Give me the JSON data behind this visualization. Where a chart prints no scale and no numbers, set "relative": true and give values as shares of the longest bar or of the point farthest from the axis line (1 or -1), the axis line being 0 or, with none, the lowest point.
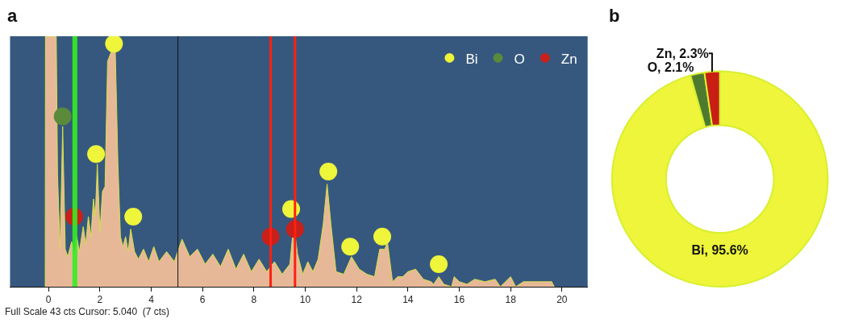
{
  "chart_data": [
    {
      "type": "area",
      "title": "a",
      "relative": true,
      "xlim": [
        -1.5,
        21
      ],
      "xticks": [
        0,
        2,
        4,
        6,
        8,
        10,
        12,
        14,
        16,
        18,
        20
      ],
      "grid": false,
      "legend": "top right",
      "annotations": [
        "Full Scale 43 cts Cursor: 5.040  (7 cts)"
      ],
      "ref_lines": [
        {
          "axis": "x",
          "value": 5.04,
          "color": "#111111"
        },
        {
          "axis": "x",
          "value": 8.65,
          "color": "#ff2010"
        },
        {
          "axis": "x",
          "value": 9.6,
          "color": "#ff2010"
        }
      ],
      "bands": [
        {
          "axis": "x",
          "from": 0.93,
          "to": 1.12,
          "color": "#33ee22"
        }
      ],
      "series": [
        {
          "type": "area",
          "color": "#e7b898",
          "x": [
            -0.13,
            -0.12,
            0.3,
            0.35,
            0.45,
            0.55,
            0.65,
            0.75,
            0.9,
            1.0,
            1.1,
            1.2,
            1.35,
            1.45,
            1.55,
            1.65,
            1.75,
            1.82,
            1.9,
            2.0,
            2.1,
            2.2,
            2.3,
            2.45,
            2.6,
            2.7,
            2.8,
            2.9,
            3.0,
            3.1,
            3.2,
            3.35,
            3.5,
            3.7,
            3.9,
            4.1,
            4.3,
            4.6,
            4.9,
            5.2,
            5.5,
            5.8,
            6.1,
            6.4,
            6.7,
            7.0,
            7.3,
            7.6,
            7.9,
            8.2,
            8.5,
            8.8,
            9.1,
            9.4,
            9.55,
            9.7,
            9.9,
            10.1,
            10.3,
            10.5,
            10.7,
            10.85,
            11.0,
            11.2,
            11.5,
            11.8,
            12.1,
            12.4,
            12.7,
            12.9,
            13.1,
            13.2,
            13.4,
            13.6,
            13.8,
            14.0,
            14.3,
            14.6,
            14.9,
            15.0,
            15.2,
            15.4,
            15.7,
            15.8,
            16.0,
            16.3,
            16.6,
            17.0,
            17.4,
            17.6,
            18.0,
            18.2,
            18.5,
            19.0,
            19.3,
            19.6,
            19.7
          ],
          "values": [
            0,
            1,
            1,
            0.45,
            0.15,
            0.64,
            0.15,
            0.12,
            0.18,
            0.12,
            0.2,
            0.14,
            0.24,
            0.17,
            0.28,
            0.2,
            0.35,
            0.28,
            0.49,
            0.22,
            0.38,
            0.4,
            0.9,
            0.94,
            0.94,
            0.5,
            0.2,
            0.16,
            0.2,
            0.14,
            0.23,
            0.14,
            0.11,
            0.15,
            0.1,
            0.16,
            0.1,
            0.14,
            0.1,
            0.19,
            0.12,
            0.15,
            0.09,
            0.13,
            0.08,
            0.15,
            0.07,
            0.13,
            0.06,
            0.11,
            0.06,
            0.1,
            0.05,
            0.09,
            0.25,
            0.13,
            0.05,
            0.1,
            0.06,
            0.11,
            0.25,
            0.41,
            0.25,
            0.06,
            0.05,
            0.12,
            0.07,
            0.05,
            0.04,
            0.15,
            0.15,
            0.18,
            0.02,
            0.04,
            0.04,
            0.06,
            0.07,
            0.03,
            0.02,
            0.01,
            0.04,
            0.01,
            0,
            0.04,
            0.02,
            0.01,
            0.03,
            0.02,
            0.03,
            0,
            0.04,
            0,
            0.02,
            0.02,
            0.02,
            0.02,
            0
          ]
        },
        {
          "type": "scatter",
          "name": "Bi",
          "marker": "circle",
          "color": "#eef53a",
          "x": [
            1.85,
            2.55,
            3.3,
            9.45,
            10.9,
            11.75,
            13.0,
            15.2
          ],
          "values": [
            0.53,
            0.97,
            0.28,
            0.31,
            0.46,
            0.16,
            0.2,
            0.09
          ]
        },
        {
          "type": "scatter",
          "name": "O",
          "marker": "circle",
          "color": "#5a8a3a",
          "x": [
            0.55
          ],
          "values": [
            0.68
          ]
        },
        {
          "type": "scatter",
          "name": "Zn",
          "marker": "circle",
          "color": "#c8201a",
          "x": [
            1.0,
            8.65,
            9.6
          ],
          "values": [
            0.28,
            0.2,
            0.23
          ]
        }
      ]
    },
    {
      "type": "donut",
      "title": "b",
      "categories": [
        "Bi",
        "O",
        "Zn"
      ],
      "values": [
        95.6,
        2.1,
        2.3
      ],
      "colors": [
        "#eef53a",
        "#4e7a30",
        "#c81e14"
      ],
      "value_labels": [
        "95.6%",
        "2.1%",
        "2.3%"
      ]
    }
  ]
}
